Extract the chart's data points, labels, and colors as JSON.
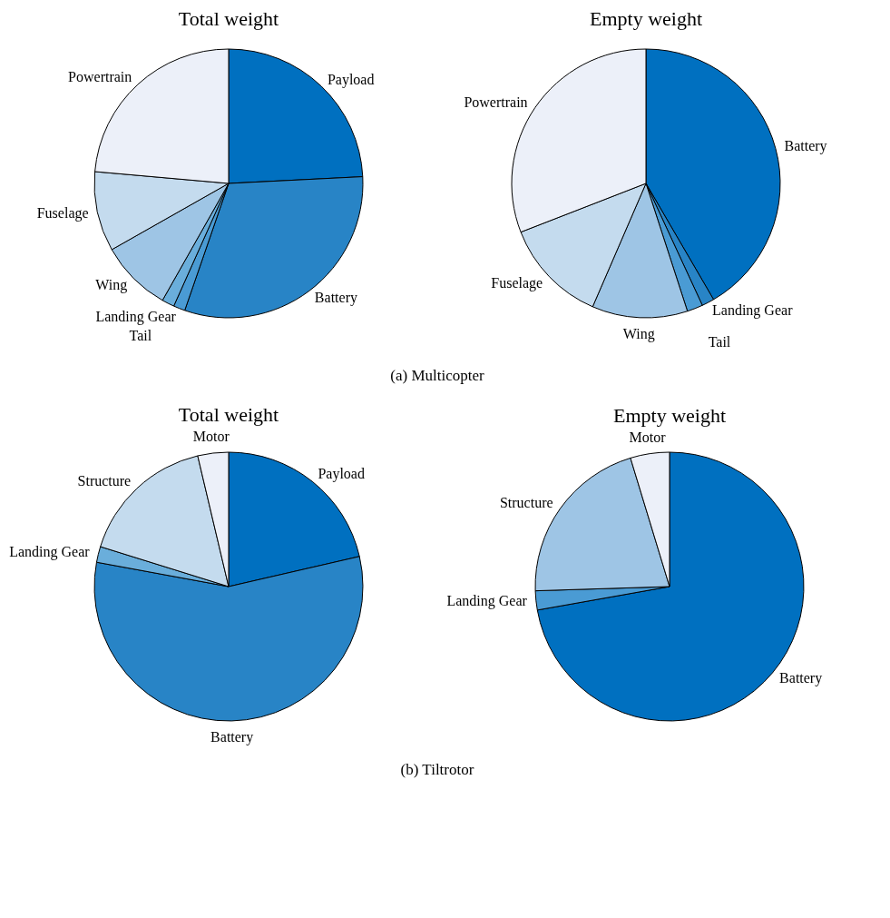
{
  "chart_data": [
    {
      "type": "pie",
      "title": "Total weight",
      "categories": [
        "Payload",
        "Battery",
        "Landing Gear",
        "Tail",
        "Wing",
        "Fuselage",
        "Powertrain"
      ],
      "values": [
        24.2,
        31.1,
        1.4,
        1.5,
        8.6,
        9.6,
        23.6
      ],
      "colors": [
        "#0070c0",
        "#2884c6",
        "#4a9bd4",
        "#6aaedb",
        "#9ec5e5",
        "#c4dbee",
        "#ecf0f9"
      ],
      "annotations": [
        "(a) Multicopter"
      ]
    },
    {
      "type": "pie",
      "title": "Empty weight",
      "categories": [
        "Battery",
        "Landing Gear",
        "Tail",
        "Wing",
        "Fuselage",
        "Powertrain"
      ],
      "values": [
        41.6,
        1.5,
        1.9,
        11.5,
        12.6,
        30.9
      ],
      "colors": [
        "#0070c0",
        "#2884c6",
        "#4a9bd4",
        "#9ec5e5",
        "#c4dbee",
        "#ecf0f9"
      ]
    },
    {
      "type": "pie",
      "title": "Total weight",
      "categories": [
        "Payload",
        "Battery",
        "Landing Gear",
        "Structure",
        "Motor"
      ],
      "values": [
        21.4,
        56.5,
        1.9,
        16.5,
        3.7
      ],
      "colors": [
        "#0070c0",
        "#2884c6",
        "#6aaedb",
        "#c4dbee",
        "#ecf0f9"
      ],
      "annotations": [
        "(b) Tiltrotor"
      ]
    },
    {
      "type": "pie",
      "title": "Empty weight",
      "categories": [
        "Battery",
        "Landing Gear",
        "Structure",
        "Motor"
      ],
      "values": [
        72.2,
        2.3,
        20.8,
        4.7
      ],
      "colors": [
        "#0070c0",
        "#4a9bd4",
        "#9ec5e5",
        "#ecf0f9"
      ]
    }
  ]
}
